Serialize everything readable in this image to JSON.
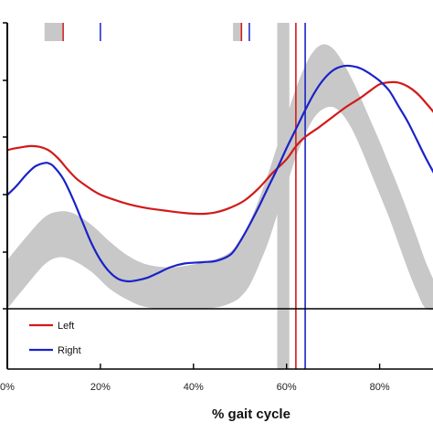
{
  "chart_data": {
    "type": "line",
    "xlabel": "% gait cycle",
    "x_ticks": [
      "0%",
      "20%",
      "40%",
      "60%",
      "80%"
    ],
    "x_tick_values": [
      0,
      20,
      40,
      60,
      80
    ],
    "xlim": [
      0,
      93
    ],
    "ylim": [
      0,
      100
    ],
    "grid": false,
    "legend_placement": "lower-left",
    "colors": {
      "left": "#d21a1a",
      "right": "#1a22c8",
      "band": "#c8c8c8",
      "axis": "#000000"
    },
    "series": [
      {
        "name": "Left",
        "color": "#d21a1a",
        "x": [
          0,
          2,
          5,
          7,
          9,
          11,
          13,
          15,
          18,
          20,
          23,
          26,
          30,
          34,
          38,
          42,
          45,
          48,
          51,
          54,
          57,
          60,
          62,
          64,
          67,
          70,
          73,
          76,
          78,
          80,
          82,
          84,
          86,
          88,
          90,
          93
        ],
        "y": [
          55.5,
          56.2,
          56.9,
          56.6,
          55.3,
          52.5,
          48.7,
          45.3,
          41.8,
          39.9,
          38.1,
          36.6,
          35.2,
          34.3,
          33.5,
          33.2,
          33.8,
          35.4,
          37.9,
          42.1,
          47.5,
          52.3,
          56.8,
          60.1,
          63.5,
          67.2,
          70.8,
          73.9,
          76.3,
          78.5,
          79.2,
          79.1,
          77.8,
          75.4,
          71.9,
          66.0
        ]
      },
      {
        "name": "Right",
        "color": "#1a22c8",
        "x": [
          0,
          2,
          4,
          6,
          8,
          9,
          10,
          12,
          14,
          16,
          18,
          20,
          22,
          24,
          26,
          28,
          30,
          32,
          35,
          38,
          42,
          45,
          48,
          50,
          52,
          54,
          56,
          58,
          60,
          62,
          64,
          66,
          68,
          70,
          72,
          74,
          76,
          78,
          80,
          82,
          84,
          86,
          88,
          90,
          93
        ],
        "y": [
          39.8,
          43.0,
          46.8,
          49.8,
          51.0,
          50.8,
          49.7,
          45.5,
          38.8,
          31.0,
          23.2,
          17.1,
          12.8,
          10.3,
          9.6,
          10.0,
          10.8,
          12.2,
          14.5,
          15.8,
          16.3,
          16.8,
          19.0,
          23.5,
          29.2,
          35.5,
          42.3,
          49.0,
          56.2,
          62.8,
          69.5,
          75.6,
          80.3,
          83.4,
          84.8,
          84.9,
          84.0,
          82.1,
          79.7,
          76.4,
          71.0,
          65.5,
          59.0,
          52.5,
          43.5
        ]
      }
    ],
    "normative_band": {
      "x": [
        0,
        4,
        8,
        11,
        14,
        18,
        22,
        26,
        30,
        35,
        40,
        45,
        48,
        50,
        52,
        54,
        56,
        58,
        60,
        62,
        64,
        66,
        68,
        70,
        72,
        74,
        76,
        78,
        80,
        82,
        84,
        86,
        88,
        90,
        93
      ],
      "upper": [
        17.0,
        25.0,
        32.0,
        34.0,
        33.5,
        29.5,
        23.5,
        18.5,
        15.5,
        14.5,
        15.5,
        17.5,
        20.0,
        24.0,
        30.0,
        38.0,
        47.0,
        57.0,
        67.0,
        77.0,
        85.0,
        90.5,
        92.5,
        91.0,
        86.5,
        80.5,
        73.5,
        66.0,
        58.5,
        50.5,
        42.5,
        34.0,
        25.0,
        16.0,
        5.0
      ],
      "lower": [
        0.0,
        8.0,
        15.5,
        18.0,
        17.0,
        13.0,
        7.0,
        3.0,
        0.5,
        0.0,
        0.0,
        0.5,
        2.0,
        4.0,
        8.0,
        15.0,
        23.0,
        33.0,
        43.0,
        53.0,
        61.0,
        67.0,
        70.0,
        70.5,
        68.0,
        63.0,
        56.0,
        48.0,
        40.0,
        32.0,
        23.0,
        14.0,
        6.0,
        0.0,
        0.0
      ]
    },
    "markers": {
      "toe_off_band": {
        "x_start": 58,
        "x_end": 60.6
      },
      "toe_off_left": 62,
      "toe_off_right": 64,
      "top_bars_gray": [
        [
          8,
          12
        ],
        [
          48.5,
          50.5
        ]
      ],
      "top_ticks": [
        {
          "x": 12,
          "series": "Left"
        },
        {
          "x": 20,
          "series": "Right"
        },
        {
          "x": 50.3,
          "series": "Left"
        },
        {
          "x": 52,
          "series": "Right"
        }
      ]
    }
  }
}
